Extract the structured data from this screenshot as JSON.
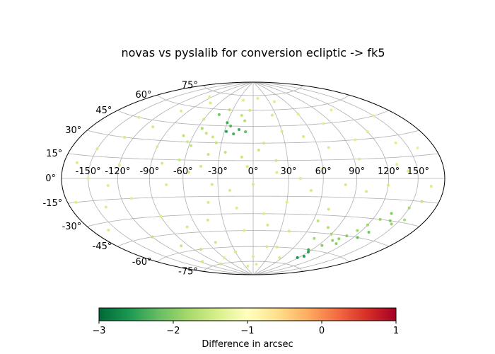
{
  "chart_data": {
    "type": "scatter",
    "projection": "aitoff",
    "title": "novas vs pyslalib for conversion ecliptic -> fk5",
    "grid": true,
    "longitude_ticks": [
      "-150°",
      "-120°",
      "-90°",
      "-60°",
      "-30°",
      "0°",
      "30°",
      "60°",
      "90°",
      "120°",
      "150°"
    ],
    "latitude_ticks": [
      "-75°",
      "-60°",
      "-45°",
      "-30°",
      "-15°",
      "0°",
      "15°",
      "30°",
      "45°",
      "60°",
      "75°"
    ],
    "colorbar": {
      "label": "Difference in arcsec",
      "colormap": "RdYlGn_r",
      "vmin": -3,
      "vmax": 1,
      "ticks": [
        "−3",
        "−2",
        "−1",
        "0",
        "1"
      ],
      "orientation": "horizontal",
      "placement": "bottom"
    },
    "color_stops": [
      "#006837",
      "#1a9850",
      "#66bd63",
      "#a6d96a",
      "#d9ef8b",
      "#ffffbf",
      "#fee08b",
      "#fdae61",
      "#f46d43",
      "#d73027",
      "#a50026"
    ],
    "series": [
      {
        "points": [
          [
            -55,
            42,
            -1.75
          ],
          [
            -48,
            38,
            -1.6
          ],
          [
            -58,
            27,
            -1.55
          ],
          [
            -63,
            30,
            -1.5
          ],
          [
            -40,
            35,
            -1.5
          ],
          [
            -45,
            55,
            -2.1
          ],
          [
            -30,
            48,
            -2.4
          ],
          [
            -25,
            45,
            -2.3
          ],
          [
            -28,
            40,
            -2.5
          ],
          [
            -15,
            42,
            -2.4
          ],
          [
            -20,
            38,
            -2.35
          ],
          [
            -8,
            40,
            -2.2
          ],
          [
            -10,
            50,
            -1.7
          ],
          [
            -5,
            60,
            -1.5
          ],
          [
            -35,
            30,
            -1.6
          ],
          [
            -25,
            22,
            -1.6
          ],
          [
            -40,
            20,
            -1.55
          ],
          [
            -10,
            18,
            -1.5
          ],
          [
            5,
            24,
            -1.5
          ],
          [
            20,
            15,
            -1.5
          ],
          [
            -100,
            55,
            -1.4
          ],
          [
            -110,
            40,
            -1.45
          ],
          [
            -90,
            25,
            -1.4
          ],
          [
            -130,
            30,
            -1.45
          ],
          [
            -150,
            20,
            -1.4
          ],
          [
            -120,
            10,
            -1.35
          ],
          [
            -80,
            12,
            -1.45
          ],
          [
            -60,
            50,
            -1.5
          ],
          [
            -75,
            65,
            -1.45
          ],
          [
            -20,
            70,
            -1.4
          ],
          [
            10,
            72,
            -1.4
          ],
          [
            40,
            68,
            -1.4
          ],
          [
            60,
            55,
            -1.4
          ],
          [
            80,
            45,
            -1.35
          ],
          [
            100,
            30,
            -1.35
          ],
          [
            120,
            35,
            -1.4
          ],
          [
            140,
            25,
            -1.35
          ],
          [
            160,
            20,
            -1.3
          ],
          [
            130,
            10,
            -1.35
          ],
          [
            95,
            15,
            -1.4
          ],
          [
            70,
            25,
            -1.4
          ],
          [
            50,
            35,
            -1.45
          ],
          [
            30,
            40,
            -1.45
          ],
          [
            10,
            30,
            -1.5
          ],
          [
            -5,
            10,
            -1.45
          ],
          [
            -165,
            10,
            -1.4
          ],
          [
            -140,
            45,
            -1.4
          ],
          [
            -95,
            70,
            -1.4
          ],
          [
            150,
            45,
            -1.35
          ],
          [
            110,
            55,
            -1.35
          ],
          [
            -170,
            -15,
            -1.4
          ],
          [
            -140,
            -20,
            -1.4
          ],
          [
            -110,
            -15,
            -1.35
          ],
          [
            -90,
            -30,
            -1.4
          ],
          [
            -70,
            -40,
            -1.45
          ],
          [
            -50,
            -55,
            -1.5
          ],
          [
            -30,
            -65,
            -1.45
          ],
          [
            -100,
            -55,
            -1.55
          ],
          [
            -120,
            -45,
            -1.6
          ],
          [
            -80,
            -60,
            -1.55
          ],
          [
            -60,
            -70,
            -1.4
          ],
          [
            -10,
            -45,
            -1.4
          ],
          [
            10,
            -30,
            -1.4
          ],
          [
            30,
            -20,
            -1.4
          ],
          [
            50,
            -10,
            -1.45
          ],
          [
            70,
            -25,
            -1.5
          ],
          [
            80,
            -40,
            -1.7
          ],
          [
            90,
            -45,
            -1.8
          ],
          [
            95,
            -55,
            -2.0
          ],
          [
            100,
            -50,
            -1.9
          ],
          [
            85,
            -60,
            -2.4
          ],
          [
            90,
            -62,
            -2.5
          ],
          [
            95,
            -66,
            -2.55
          ],
          [
            88,
            -68,
            -2.6
          ],
          [
            105,
            -48,
            -1.9
          ],
          [
            110,
            -52,
            -1.95
          ],
          [
            115,
            -40,
            -1.8
          ],
          [
            120,
            -35,
            -1.85
          ],
          [
            128,
            -30,
            -1.9
          ],
          [
            135,
            -25,
            -2.0
          ],
          [
            140,
            -30,
            -2.05
          ],
          [
            145,
            -32,
            -1.9
          ],
          [
            150,
            -20,
            -1.8
          ],
          [
            155,
            -28,
            -1.75
          ],
          [
            160,
            -15,
            -1.6
          ],
          [
            125,
            -45,
            -2.2
          ],
          [
            130,
            -40,
            -2.1
          ],
          [
            110,
            -45,
            -2.0
          ],
          [
            75,
            -50,
            -1.8
          ],
          [
            65,
            -35,
            -1.6
          ],
          [
            40,
            -45,
            -1.5
          ],
          [
            20,
            -60,
            -1.45
          ],
          [
            0,
            -70,
            -1.4
          ],
          [
            -20,
            -80,
            -1.4
          ],
          [
            10,
            -78,
            -1.4
          ],
          [
            -160,
            -35,
            -1.4
          ],
          [
            -130,
            -5,
            -1.4
          ],
          [
            -40,
            -20,
            -1.45
          ],
          [
            -20,
            -10,
            -1.45
          ],
          [
            0,
            -5,
            -1.45
          ],
          [
            20,
            5,
            -1.4
          ],
          [
            40,
            0,
            -1.4
          ],
          [
            60,
            8,
            -1.4
          ],
          [
            80,
            -5,
            -1.45
          ],
          [
            100,
            -10,
            -1.45
          ],
          [
            120,
            -5,
            -1.45
          ],
          [
            140,
            5,
            -1.4
          ],
          [
            165,
            -5,
            -1.4
          ],
          [
            -150,
            0,
            -1.4
          ],
          [
            -75,
            -5,
            -1.4
          ],
          [
            -55,
            5,
            -1.45
          ],
          [
            -35,
            -5,
            -1.45
          ],
          [
            15,
            -40,
            -1.45
          ],
          [
            35,
            -60,
            -1.45
          ],
          [
            55,
            -70,
            -1.45
          ],
          [
            -115,
            -70,
            -1.5
          ],
          [
            -90,
            -75,
            -1.5
          ],
          [
            -45,
            -35,
            -1.45
          ],
          [
            -15,
            -25,
            -1.4
          ],
          [
            25,
            55,
            -1.45
          ],
          [
            -65,
            15,
            -1.55
          ],
          [
            -45,
            10,
            -1.5
          ],
          [
            -70,
            35,
            -1.6
          ],
          [
            -35,
            60,
            -1.65
          ],
          [
            -15,
            55,
            -1.6
          ]
        ]
      }
    ]
  }
}
